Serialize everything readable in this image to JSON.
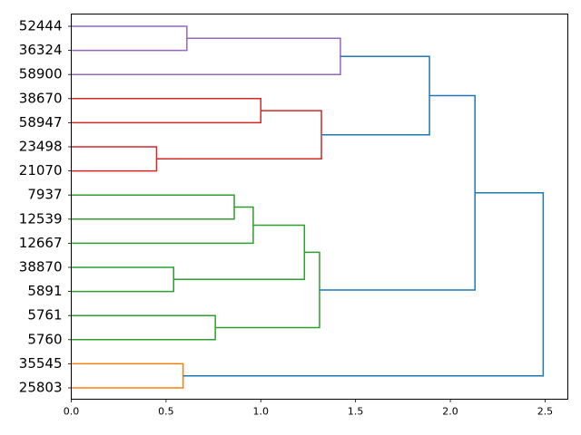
{
  "chart_data": {
    "type": "dendrogram",
    "orientation": "right",
    "title": "",
    "xlabel": "",
    "ylabel": "",
    "xlim": [
      0,
      2.62
    ],
    "x_ticks": [
      0.0,
      0.5,
      1.0,
      1.5,
      2.0,
      2.5
    ],
    "x_tick_labels": [
      "0.0",
      "0.5",
      "1.0",
      "1.5",
      "2.0",
      "2.5"
    ],
    "leaves": [
      "52444",
      "36324",
      "58900",
      "38670",
      "58947",
      "23498",
      "21070",
      "7937",
      "12539",
      "12667",
      "38870",
      "5891",
      "5761",
      "5760",
      "35545",
      "25803"
    ],
    "colors": {
      "purple": "#9467bd",
      "red": "#d62728",
      "green": "#2ca02c",
      "orange": "#ff7f0e",
      "blue": "#1f77b4"
    },
    "merges": [
      {
        "a": "52444",
        "b": "36324",
        "height": 0.61,
        "color": "purple"
      },
      {
        "a": "52444+36324",
        "b": "58900",
        "height": 1.42,
        "color": "purple"
      },
      {
        "a": "38670",
        "b": "58947",
        "height": 1.0,
        "color": "red"
      },
      {
        "a": "23498",
        "b": "21070",
        "height": 0.45,
        "color": "red"
      },
      {
        "a": "38670+58947",
        "b": "23498+21070",
        "height": 1.32,
        "color": "red"
      },
      {
        "a": "purple-cluster",
        "b": "red-cluster",
        "height": 1.89,
        "color": "blue"
      },
      {
        "a": "7937",
        "b": "12539",
        "height": 0.86,
        "color": "green"
      },
      {
        "a": "7937+12539",
        "b": "12667",
        "height": 0.96,
        "color": "green"
      },
      {
        "a": "38870",
        "b": "5891",
        "height": 0.54,
        "color": "green"
      },
      {
        "a": "7937+12539+12667",
        "b": "38870+5891",
        "height": 1.23,
        "color": "green"
      },
      {
        "a": "5761",
        "b": "5760",
        "height": 0.76,
        "color": "green"
      },
      {
        "a": "green-upper",
        "b": "5761+5760",
        "height": 1.31,
        "color": "green"
      },
      {
        "a": "purple-red",
        "b": "green-cluster",
        "height": 2.13,
        "color": "blue"
      },
      {
        "a": "35545",
        "b": "25803",
        "height": 0.59,
        "color": "orange"
      },
      {
        "a": "all-upper",
        "b": "orange-cluster",
        "height": 2.49,
        "color": "blue"
      }
    ]
  }
}
